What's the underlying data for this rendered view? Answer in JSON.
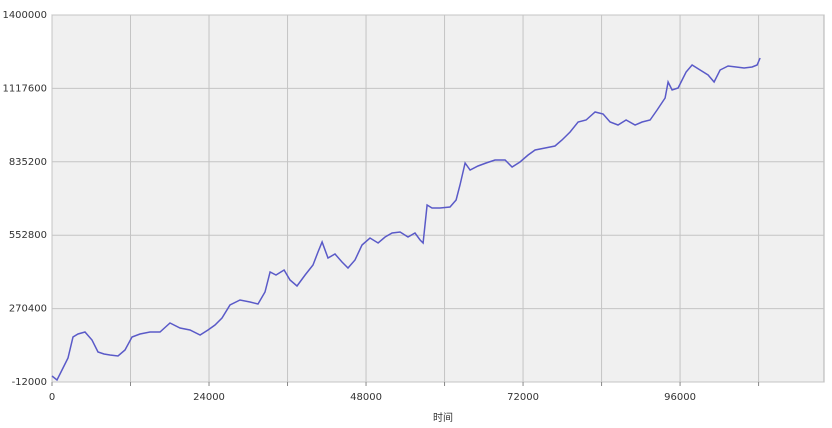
{
  "chart_data": {
    "type": "line",
    "x_label": "时间",
    "x": [
      0,
      760,
      1530,
      2450,
      3210,
      3980,
      5050,
      6120,
      7030,
      7950,
      8870,
      10090,
      11160,
      12230,
      13450,
      14980,
      16510,
      18040,
      19570,
      21100,
      22630,
      23850,
      24920,
      25990,
      27210,
      28740,
      30270,
      31490,
      32560,
      33330,
      34240,
      35470,
      36380,
      37450,
      38680,
      39900,
      40660,
      41280,
      42190,
      43260,
      44330,
      45250,
      46320,
      47390,
      48610,
      49840,
      50910,
      51980,
      53200,
      54420,
      55490,
      56260,
      56720,
      57330,
      58090,
      59310,
      60840,
      61760,
      62370,
      63140,
      63900,
      65120,
      66350,
      67720,
      69250,
      70320,
      71540,
      72770,
      73840,
      75370,
      76890,
      77960,
      79190,
      80410,
      81630,
      83010,
      84230,
      85300,
      86520,
      87750,
      89120,
      90190,
      91420,
      92490,
      93710,
      94170,
      94780,
      95700,
      96920,
      97840,
      99060,
      100280,
      101200,
      102120,
      103340,
      104560,
      105790,
      107010,
      107770,
      108230
    ],
    "series": [
      {
        "color": "#5a5ac8",
        "values": [
          11100,
          -4300,
          34200,
          80300,
          161100,
          172700,
          180400,
          149600,
          103400,
          95700,
          91900,
          88000,
          111100,
          161100,
          172700,
          180400,
          180400,
          215000,
          195800,
          188100,
          168800,
          188100,
          207300,
          234200,
          284300,
          303500,
          295800,
          288100,
          334300,
          411200,
          399700,
          418900,
          380400,
          357400,
          399700,
          438200,
          488200,
          526600,
          465100,
          480500,
          449700,
          426600,
          457400,
          515100,
          542000,
          522800,
          545900,
          561300,
          565100,
          545900,
          561300,
          534300,
          522800,
          669000,
          657500,
          657500,
          661300,
          688200,
          745900,
          830600,
          803700,
          819000,
          830600,
          842100,
          842100,
          815200,
          834400,
          861400,
          880600,
          888300,
          896000,
          919100,
          949900,
          988300,
          996000,
          1026800,
          1019100,
          988300,
          976800,
          996000,
          976800,
          988300,
          996000,
          1034500,
          1080700,
          1142200,
          1111400,
          1119100,
          1180700,
          1207600,
          1188400,
          1169200,
          1142200,
          1188400,
          1203800,
          1199900,
          1196100,
          1199900,
          1207600,
          1234600
        ]
      }
    ],
    "xlim": [
      0,
      118000
    ],
    "xticks": [
      0,
      24000,
      48000,
      72000,
      96000
    ],
    "ylim": [
      -12000,
      1400000
    ],
    "yticks": [
      -12000,
      270400,
      552800,
      835200,
      1117600,
      1400000
    ],
    "grid": true
  }
}
